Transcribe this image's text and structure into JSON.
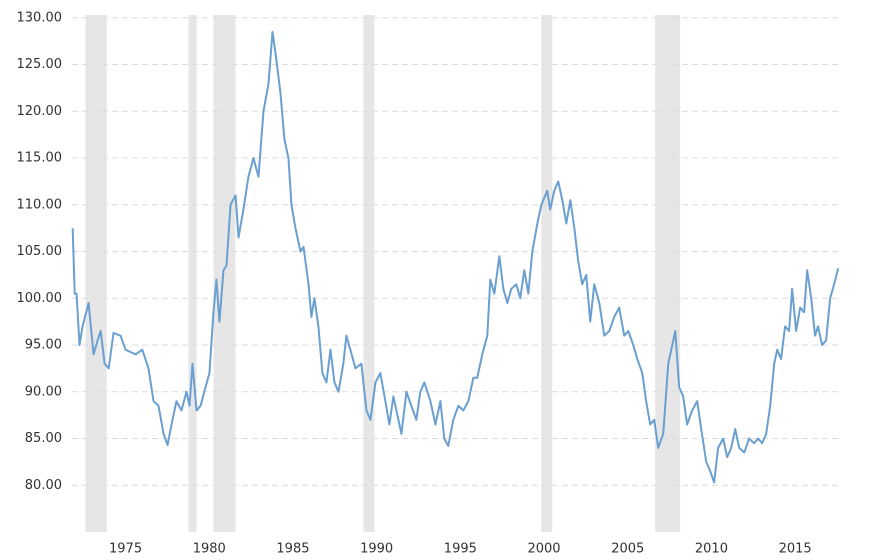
{
  "chart_data": {
    "type": "line",
    "x": [
      1971.84,
      1971.96,
      1972.07,
      1972.25,
      1972.43,
      1972.79,
      1973.09,
      1973.33,
      1973.51,
      1973.75,
      1973.99,
      1974.28,
      1974.7,
      1975.0,
      1975.6,
      1976.0,
      1976.37,
      1976.67,
      1976.97,
      1977.27,
      1977.51,
      1977.69,
      1978.04,
      1978.34,
      1978.64,
      1978.82,
      1979.0,
      1979.24,
      1979.48,
      1979.78,
      1980.01,
      1980.25,
      1980.43,
      1980.61,
      1980.85,
      1981.03,
      1981.27,
      1981.57,
      1981.75,
      1982.04,
      1982.34,
      1982.64,
      1982.94,
      1983.24,
      1983.54,
      1983.78,
      1984.01,
      1984.25,
      1984.49,
      1984.73,
      1984.91,
      1985.15,
      1985.45,
      1985.63,
      1985.93,
      1986.1,
      1986.28,
      1986.52,
      1986.76,
      1987.0,
      1987.24,
      1987.48,
      1987.72,
      1988.01,
      1988.19,
      1988.43,
      1988.73,
      1989.09,
      1989.39,
      1989.63,
      1989.93,
      1990.22,
      1990.52,
      1990.76,
      1991.0,
      1991.3,
      1991.48,
      1991.78,
      1992.07,
      1992.37,
      1992.61,
      1992.85,
      1993.21,
      1993.51,
      1993.81,
      1994.04,
      1994.28,
      1994.58,
      1994.88,
      1995.18,
      1995.48,
      1995.78,
      1996.01,
      1996.31,
      1996.61,
      1996.79,
      1997.03,
      1997.33,
      1997.57,
      1997.81,
      1998.04,
      1998.34,
      1998.58,
      1998.82,
      1999.06,
      1999.3,
      1999.6,
      1999.84,
      2000.19,
      2000.37,
      2000.61,
      2000.85,
      2001.09,
      2001.33,
      2001.57,
      2001.81,
      2002.04,
      2002.28,
      2002.52,
      2002.76,
      2003.0,
      2003.3,
      2003.6,
      2003.9,
      2004.19,
      2004.49,
      2004.79,
      2005.03,
      2005.33,
      2005.57,
      2005.87,
      2006.1,
      2006.34,
      2006.58,
      2006.82,
      2007.12,
      2007.42,
      2007.6,
      2007.84,
      2008.07,
      2008.31,
      2008.55,
      2008.85,
      2009.15,
      2009.39,
      2009.69,
      2009.93,
      2010.16,
      2010.4,
      2010.7,
      2010.94,
      2011.18,
      2011.42,
      2011.66,
      2011.96,
      2012.25,
      2012.55,
      2012.79,
      2013.03,
      2013.27,
      2013.51,
      2013.75,
      2013.93,
      2014.16,
      2014.4,
      2014.64,
      2014.82,
      2015.06,
      2015.3,
      2015.54,
      2015.72,
      2015.96,
      2016.19,
      2016.37,
      2016.61,
      2016.85,
      2017.09,
      2017.33,
      2017.57
    ],
    "values": [
      107.5,
      100.5,
      100.5,
      95,
      97,
      99.5,
      94,
      95.5,
      96.5,
      93,
      92.5,
      96.3,
      96,
      94.5,
      94,
      94.5,
      92.5,
      89,
      88.5,
      85.5,
      84.3,
      86,
      89,
      88,
      90,
      88.5,
      93,
      88,
      88.5,
      90.5,
      92,
      98.5,
      102,
      97.5,
      103,
      103.5,
      110,
      111,
      106.5,
      109.5,
      113,
      115,
      113,
      120,
      123,
      128.5,
      125.5,
      122,
      117,
      115,
      110,
      107.5,
      105,
      105.5,
      101.5,
      98,
      100,
      97,
      92,
      91,
      94.5,
      91,
      90,
      93,
      96,
      94.5,
      92.5,
      93,
      88,
      87,
      91,
      92,
      89,
      86.5,
      89.5,
      87,
      85.5,
      90,
      88.5,
      87,
      90,
      91,
      89,
      86.5,
      89,
      85,
      84.2,
      87,
      88.5,
      88,
      89,
      91.5,
      91.5,
      94,
      96,
      102,
      100.5,
      104.5,
      101,
      99.5,
      101,
      101.5,
      100,
      103,
      100.5,
      105,
      108,
      110,
      111.5,
      109.5,
      111.5,
      112.5,
      110.5,
      108,
      110.5,
      107.5,
      104,
      101.5,
      102.5,
      97.5,
      101.5,
      99.5,
      96,
      96.5,
      98,
      99,
      96,
      96.5,
      95,
      93.5,
      92,
      89,
      86.5,
      87,
      84,
      85.5,
      93,
      94.5,
      96.5,
      90.5,
      89.5,
      86.5,
      88,
      89,
      86,
      82.5,
      81.5,
      80.3,
      84,
      85,
      83,
      84,
      86,
      84,
      83.5,
      85,
      84.5,
      85,
      84.5,
      85.5,
      88.5,
      93,
      94.5,
      93.5,
      97,
      96.5,
      101,
      96.5,
      99,
      98.5,
      103,
      100,
      96,
      97,
      95,
      95.5,
      100,
      101.5,
      103.2
    ],
    "color": "#6a9fd0",
    "shaded_periods": [
      [
        1972.61,
        1973.87
      ],
      [
        1978.76,
        1979.24
      ],
      [
        1980.25,
        1981.57
      ],
      [
        1989.21,
        1989.87
      ],
      [
        1999.84,
        2000.49
      ],
      [
        2006.64,
        2008.13
      ]
    ],
    "shade_color": "#e6e6e6",
    "xlim": [
      1971.8,
      2017.8
    ],
    "xticks": [
      1975,
      1980,
      1985,
      1990,
      1995,
      2000,
      2005,
      2010,
      2015
    ],
    "ylim": [
      75,
      130.3
    ],
    "yticks": [
      {
        "value": 80,
        "label": "80.00"
      },
      {
        "value": 85,
        "label": "85.00"
      },
      {
        "value": 90,
        "label": "90.00"
      },
      {
        "value": 95,
        "label": "95.00"
      },
      {
        "value": 100,
        "label": "100.00"
      },
      {
        "value": 105,
        "label": "105.00"
      },
      {
        "value": 110,
        "label": "110.00"
      },
      {
        "value": 115,
        "label": "115.00"
      },
      {
        "value": 120,
        "label": "120.00"
      },
      {
        "value": 125,
        "label": "125.00"
      },
      {
        "value": 130,
        "label": "130.00"
      }
    ],
    "grid": true
  }
}
